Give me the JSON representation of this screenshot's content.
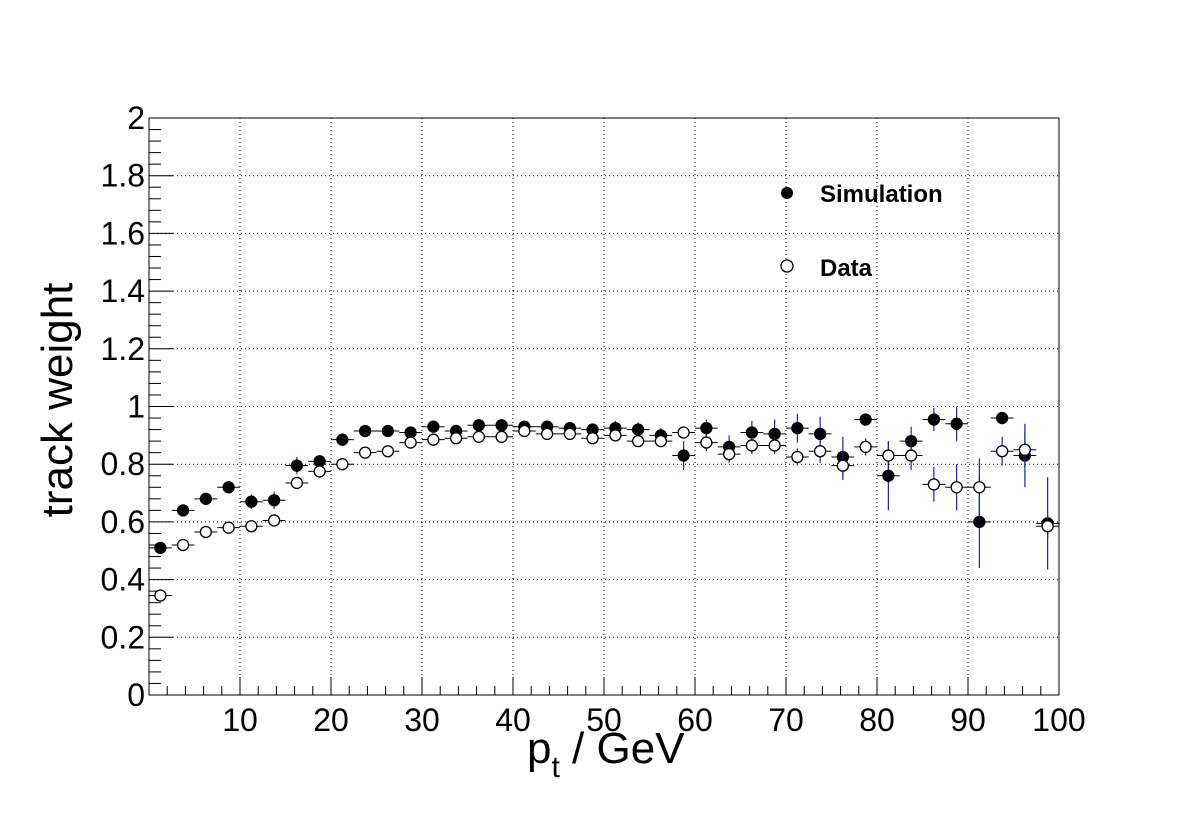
{
  "chart_data": {
    "type": "scatter",
    "title": "",
    "xlabel_main": "p",
    "xlabel_sub": "t",
    "xlabel_rest": " / GeV",
    "ylabel": "track weight",
    "xlim": [
      0,
      100
    ],
    "ylim": [
      0,
      2
    ],
    "xticks": [
      10,
      20,
      30,
      40,
      50,
      60,
      70,
      80,
      90,
      100
    ],
    "xtick_labels": [
      "10",
      "20",
      "30",
      "40",
      "50",
      "60",
      "70",
      "80",
      "90",
      "100"
    ],
    "yticks": [
      0,
      0.2,
      0.4,
      0.6,
      0.8,
      1,
      1.2,
      1.4,
      1.6,
      1.8,
      2
    ],
    "ytick_labels": [
      "0",
      "0.2",
      "0.4",
      "0.6",
      "0.8",
      "1",
      "1.2",
      "1.4",
      "1.6",
      "1.8",
      "2"
    ],
    "grid": true,
    "legend_position": "top-right",
    "x_bin_halfwidth": 1.25,
    "series": [
      {
        "name": "Simulation",
        "marker": "filled-circle",
        "x": [
          1.25,
          3.75,
          6.25,
          8.75,
          11.25,
          13.75,
          16.25,
          18.75,
          21.25,
          23.75,
          26.25,
          28.75,
          31.25,
          33.75,
          36.25,
          38.75,
          41.25,
          43.75,
          46.25,
          48.75,
          51.25,
          53.75,
          56.25,
          58.75,
          61.25,
          63.75,
          66.25,
          68.75,
          71.25,
          73.75,
          76.25,
          78.75,
          81.25,
          83.75,
          86.25,
          88.75,
          91.25,
          93.75,
          96.25,
          98.75
        ],
        "y": [
          0.51,
          0.64,
          0.68,
          0.72,
          0.67,
          0.675,
          0.795,
          0.81,
          0.885,
          0.915,
          0.915,
          0.91,
          0.93,
          0.915,
          0.935,
          0.935,
          0.93,
          0.93,
          0.925,
          0.92,
          0.925,
          0.92,
          0.9,
          0.83,
          0.925,
          0.86,
          0.91,
          0.905,
          0.925,
          0.905,
          0.825,
          0.955,
          0.76,
          0.88,
          0.955,
          0.94,
          0.6,
          0.96,
          0.83,
          0.595
        ],
        "yerr": [
          0.01,
          0.01,
          0.01,
          0.015,
          0.025,
          0.03,
          0.03,
          0.02,
          0.02,
          0.015,
          0.015,
          0.015,
          0.02,
          0.015,
          0.015,
          0.015,
          0.015,
          0.02,
          0.02,
          0.02,
          0.025,
          0.025,
          0.025,
          0.05,
          0.03,
          0.04,
          0.04,
          0.05,
          0.05,
          0.06,
          0.07,
          0.02,
          0.12,
          0.05,
          0.04,
          0.06,
          0.16,
          0.02,
          0.11,
          0.16
        ]
      },
      {
        "name": "Data",
        "marker": "open-circle",
        "x": [
          1.25,
          3.75,
          6.25,
          8.75,
          11.25,
          13.75,
          16.25,
          18.75,
          21.25,
          23.75,
          26.25,
          28.75,
          31.25,
          33.75,
          36.25,
          38.75,
          41.25,
          43.75,
          46.25,
          48.75,
          51.25,
          53.75,
          56.25,
          58.75,
          61.25,
          63.75,
          66.25,
          68.75,
          71.25,
          73.75,
          76.25,
          78.75,
          81.25,
          83.75,
          86.25,
          88.75,
          91.25,
          93.75,
          96.25,
          98.75
        ],
        "y": [
          0.345,
          0.52,
          0.565,
          0.58,
          0.585,
          0.605,
          0.735,
          0.775,
          0.8,
          0.84,
          0.845,
          0.875,
          0.885,
          0.89,
          0.895,
          0.895,
          0.915,
          0.905,
          0.905,
          0.89,
          0.9,
          0.88,
          0.88,
          0.91,
          0.875,
          0.835,
          0.865,
          0.865,
          0.825,
          0.845,
          0.795,
          0.86,
          0.83,
          0.83,
          0.73,
          0.72,
          0.72,
          0.845,
          0.85,
          0.585
        ],
        "yerr": [
          0.01,
          0.01,
          0.01,
          0.01,
          0.015,
          0.02,
          0.015,
          0.015,
          0.015,
          0.015,
          0.015,
          0.015,
          0.015,
          0.015,
          0.015,
          0.015,
          0.015,
          0.015,
          0.02,
          0.02,
          0.02,
          0.02,
          0.02,
          0.02,
          0.03,
          0.03,
          0.03,
          0.03,
          0.03,
          0.04,
          0.05,
          0.03,
          0.05,
          0.05,
          0.06,
          0.08,
          0.1,
          0.05,
          0.06,
          0.04
        ]
      }
    ]
  },
  "colors": {
    "axis": "#000000",
    "grid": "#000000",
    "error_bar": "#1a2a8c",
    "marker": "#000000",
    "background": "#ffffff"
  }
}
